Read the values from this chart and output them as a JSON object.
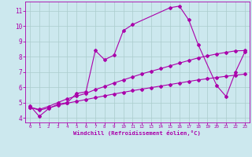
{
  "xlabel": "Windchill (Refroidissement éolien,°C)",
  "bg_color": "#cce8ee",
  "line_color": "#aa00aa",
  "grid_color": "#aacccc",
  "xlim_min": -0.5,
  "xlim_max": 23.5,
  "ylim_min": 3.7,
  "ylim_max": 11.6,
  "xticks": [
    0,
    1,
    2,
    3,
    4,
    5,
    6,
    7,
    8,
    9,
    10,
    11,
    12,
    13,
    14,
    15,
    16,
    17,
    18,
    19,
    20,
    21,
    22,
    23
  ],
  "yticks": [
    4,
    5,
    6,
    7,
    8,
    9,
    10,
    11
  ],
  "series": [
    {
      "x": [
        0,
        1,
        2,
        3,
        4,
        5,
        6,
        7,
        8,
        9,
        10,
        11,
        15,
        16,
        17,
        18,
        20,
        21,
        22,
        23
      ],
      "y": [
        4.8,
        4.1,
        4.6,
        4.9,
        5.0,
        5.6,
        5.7,
        8.4,
        7.8,
        8.1,
        9.7,
        10.1,
        11.2,
        11.3,
        10.4,
        8.8,
        6.1,
        5.4,
        7.0,
        8.3
      ]
    },
    {
      "x": [
        0,
        1,
        2,
        3,
        4,
        5,
        6,
        7,
        8,
        9,
        10,
        11,
        12,
        13,
        14,
        15,
        16,
        17,
        18,
        19,
        20,
        21,
        22,
        23
      ],
      "y": [
        4.7,
        4.55,
        4.75,
        5.0,
        5.25,
        5.42,
        5.6,
        5.85,
        6.05,
        6.28,
        6.48,
        6.68,
        6.88,
        7.05,
        7.22,
        7.4,
        7.58,
        7.75,
        7.92,
        8.05,
        8.18,
        8.28,
        8.38,
        8.4
      ]
    },
    {
      "x": [
        0,
        1,
        2,
        3,
        4,
        5,
        6,
        7,
        8,
        9,
        10,
        11,
        12,
        13,
        14,
        15,
        16,
        17,
        18,
        19,
        20,
        21,
        22,
        23
      ],
      "y": [
        4.7,
        4.5,
        4.65,
        4.82,
        4.96,
        5.08,
        5.2,
        5.32,
        5.44,
        5.56,
        5.67,
        5.78,
        5.88,
        5.98,
        6.08,
        6.18,
        6.28,
        6.38,
        6.48,
        6.56,
        6.64,
        6.72,
        6.79,
        6.86
      ]
    }
  ]
}
